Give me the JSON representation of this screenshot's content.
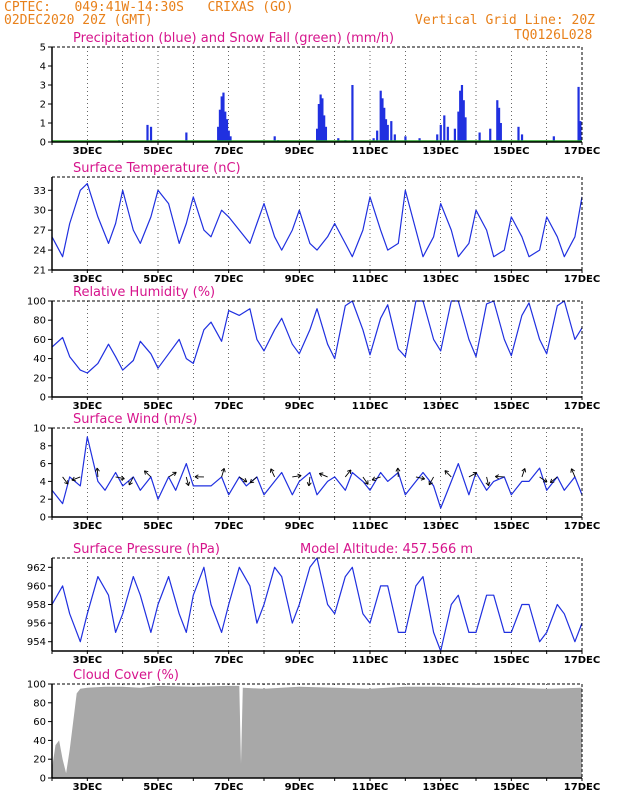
{
  "header": {
    "line1": "CPTEC:   049:41W-14:30S   CRIXAS (GO)",
    "line2": "02DEC2020 20Z (GMT)",
    "grid_note": "Vertical Grid Line: 20Z",
    "code": "TQ0126L028"
  },
  "colors": {
    "header": "#e8801a",
    "title": "#d6148c",
    "series_blue": "#2030e0",
    "snow_green": "#22a022",
    "cloud_gray": "#a8a8a8"
  },
  "date_labels": [
    "3DEC",
    "5DEC",
    "7DEC",
    "9DEC",
    "11DEC",
    "13DEC",
    "15DEC",
    "17DEC"
  ],
  "chart_data": [
    {
      "type": "bar",
      "title": "Precipitation (blue) and Snow Fall (green) (mm/h)",
      "ylim": [
        0,
        5
      ],
      "yticks": [
        0,
        1,
        2,
        3,
        4,
        5
      ],
      "series": [
        {
          "name": "Precipitation",
          "color": "#2030e0",
          "points": [
            [
              3.0,
              0.05
            ],
            [
              3.9,
              0.1
            ],
            [
              4.7,
              0.9
            ],
            [
              4.8,
              0.8
            ],
            [
              5.8,
              0.5
            ],
            [
              6.7,
              0.8
            ],
            [
              6.75,
              1.7
            ],
            [
              6.8,
              2.4
            ],
            [
              6.85,
              2.6
            ],
            [
              6.9,
              1.6
            ],
            [
              6.95,
              1.2
            ],
            [
              7.0,
              0.6
            ],
            [
              7.05,
              0.3
            ],
            [
              8.3,
              0.3
            ],
            [
              8.4,
              0.1
            ],
            [
              9.5,
              0.7
            ],
            [
              9.55,
              2.0
            ],
            [
              9.6,
              2.5
            ],
            [
              9.65,
              2.3
            ],
            [
              9.7,
              1.4
            ],
            [
              9.75,
              0.8
            ],
            [
              10.1,
              0.2
            ],
            [
              10.3,
              0.1
            ],
            [
              10.5,
              3.0
            ],
            [
              11.1,
              0.2
            ],
            [
              11.2,
              0.6
            ],
            [
              11.3,
              2.7
            ],
            [
              11.35,
              2.3
            ],
            [
              11.4,
              1.8
            ],
            [
              11.45,
              1.2
            ],
            [
              11.5,
              0.9
            ],
            [
              11.6,
              1.1
            ],
            [
              11.7,
              0.4
            ],
            [
              12.0,
              0.3
            ],
            [
              12.4,
              0.2
            ],
            [
              12.9,
              0.4
            ],
            [
              13.0,
              0.9
            ],
            [
              13.1,
              1.4
            ],
            [
              13.2,
              0.8
            ],
            [
              13.4,
              0.7
            ],
            [
              13.5,
              1.6
            ],
            [
              13.55,
              2.7
            ],
            [
              13.6,
              3.0
            ],
            [
              13.65,
              2.2
            ],
            [
              13.7,
              1.3
            ],
            [
              14.1,
              0.5
            ],
            [
              14.4,
              0.7
            ],
            [
              14.6,
              2.2
            ],
            [
              14.65,
              1.8
            ],
            [
              14.7,
              1.0
            ],
            [
              15.2,
              0.8
            ],
            [
              15.3,
              0.4
            ],
            [
              16.2,
              0.3
            ],
            [
              16.9,
              2.9
            ],
            [
              16.95,
              1.1
            ]
          ]
        },
        {
          "name": "Snow Fall",
          "color": "#22a022",
          "values": "0"
        }
      ]
    },
    {
      "type": "line",
      "title": "Surface Temperature (nC)",
      "ylim": [
        21,
        35
      ],
      "yticks": [
        21,
        24,
        27,
        30,
        33
      ],
      "x": [
        2.0,
        2.3,
        2.5,
        2.8,
        3.0,
        3.3,
        3.6,
        3.8,
        4.0,
        4.3,
        4.5,
        4.8,
        5.0,
        5.3,
        5.6,
        5.8,
        6.0,
        6.3,
        6.5,
        6.8,
        7.0,
        7.3,
        7.6,
        7.8,
        8.0,
        8.3,
        8.5,
        8.8,
        9.0,
        9.3,
        9.5,
        9.8,
        10.0,
        10.3,
        10.5,
        10.8,
        11.0,
        11.3,
        11.5,
        11.8,
        12.0,
        12.3,
        12.5,
        12.8,
        13.0,
        13.3,
        13.5,
        13.8,
        14.0,
        14.3,
        14.5,
        14.8,
        15.0,
        15.3,
        15.5,
        15.8,
        16.0,
        16.3,
        16.5,
        16.8,
        17.0
      ],
      "y": [
        26,
        23,
        28,
        33,
        34,
        29,
        25,
        28,
        33,
        27,
        25,
        29,
        33,
        31,
        25,
        28,
        32,
        27,
        26,
        30,
        29,
        27,
        25,
        28,
        31,
        26,
        24,
        27,
        30,
        25,
        24,
        26,
        28,
        25,
        23,
        27,
        32,
        27,
        24,
        25,
        33,
        27,
        23,
        26,
        31,
        27,
        23,
        25,
        30,
        27,
        23,
        24,
        29,
        26,
        23,
        24,
        29,
        26,
        23,
        26,
        32
      ]
    },
    {
      "type": "line",
      "title": "Relative Humidity (%)",
      "ylim": [
        0,
        100
      ],
      "yticks": [
        0,
        20,
        40,
        60,
        80,
        100
      ],
      "x": [
        2.0,
        2.3,
        2.5,
        2.8,
        3.0,
        3.3,
        3.6,
        3.8,
        4.0,
        4.3,
        4.5,
        4.8,
        5.0,
        5.3,
        5.6,
        5.8,
        6.0,
        6.3,
        6.5,
        6.8,
        7.0,
        7.3,
        7.6,
        7.8,
        8.0,
        8.3,
        8.5,
        8.8,
        9.0,
        9.3,
        9.5,
        9.8,
        10.0,
        10.3,
        10.5,
        10.8,
        11.0,
        11.3,
        11.5,
        11.8,
        12.0,
        12.3,
        12.5,
        12.8,
        13.0,
        13.3,
        13.5,
        13.8,
        14.0,
        14.3,
        14.5,
        14.8,
        15.0,
        15.3,
        15.5,
        15.8,
        16.0,
        16.3,
        16.5,
        16.8,
        17.0
      ],
      "y": [
        52,
        62,
        42,
        28,
        25,
        35,
        55,
        42,
        28,
        38,
        58,
        45,
        30,
        45,
        60,
        40,
        35,
        70,
        78,
        58,
        90,
        85,
        92,
        60,
        48,
        70,
        82,
        55,
        45,
        70,
        92,
        55,
        40,
        95,
        100,
        70,
        44,
        82,
        96,
        50,
        42,
        100,
        100,
        60,
        48,
        100,
        100,
        60,
        42,
        97,
        100,
        60,
        43,
        85,
        98,
        60,
        45,
        95,
        100,
        60,
        72
      ]
    },
    {
      "type": "line",
      "title": "Surface Wind (m/s)",
      "ylim": [
        0,
        10
      ],
      "yticks": [
        0,
        2,
        4,
        6,
        8,
        10
      ],
      "x": [
        2.0,
        2.3,
        2.5,
        2.8,
        3.0,
        3.3,
        3.5,
        3.8,
        4.0,
        4.3,
        4.5,
        4.8,
        5.0,
        5.3,
        5.5,
        5.8,
        6.0,
        6.3,
        6.5,
        6.8,
        7.0,
        7.3,
        7.5,
        7.8,
        8.0,
        8.3,
        8.5,
        8.8,
        9.0,
        9.3,
        9.5,
        9.8,
        10.0,
        10.3,
        10.5,
        10.8,
        11.0,
        11.3,
        11.5,
        11.8,
        12.0,
        12.3,
        12.5,
        12.8,
        13.0,
        13.3,
        13.5,
        13.8,
        14.0,
        14.3,
        14.5,
        14.8,
        15.0,
        15.3,
        15.5,
        15.8,
        16.0,
        16.3,
        16.5,
        16.8,
        17.0
      ],
      "y": [
        3,
        1.5,
        4.5,
        3.5,
        9,
        4,
        3,
        5,
        3.5,
        4.5,
        3,
        4.5,
        2,
        4.5,
        3,
        6,
        3.5,
        3.5,
        3.5,
        4.5,
        2.5,
        4.5,
        3.5,
        4.5,
        2.5,
        4,
        5,
        2.5,
        4,
        5,
        2.5,
        4,
        4.5,
        3,
        5,
        4,
        3,
        5,
        4,
        5,
        2.5,
        4,
        5,
        3.5,
        1,
        4,
        6,
        2.5,
        5,
        3,
        4,
        4.5,
        2.5,
        4,
        4,
        5.5,
        3,
        4.5,
        3,
        4.5,
        2.5
      ]
    },
    {
      "type": "line",
      "title": "Surface Pressure (hPa)",
      "annotation": "Model Altitude: 457.566  m",
      "ylim": [
        953,
        963
      ],
      "yticks": [
        954,
        956,
        958,
        960,
        962
      ],
      "x": [
        2.0,
        2.3,
        2.5,
        2.8,
        3.0,
        3.3,
        3.6,
        3.8,
        4.0,
        4.3,
        4.5,
        4.8,
        5.0,
        5.3,
        5.6,
        5.8,
        6.0,
        6.3,
        6.5,
        6.8,
        7.0,
        7.3,
        7.6,
        7.8,
        8.0,
        8.3,
        8.5,
        8.8,
        9.0,
        9.3,
        9.5,
        9.8,
        10.0,
        10.3,
        10.5,
        10.8,
        11.0,
        11.3,
        11.5,
        11.8,
        12.0,
        12.3,
        12.5,
        12.8,
        13.0,
        13.3,
        13.5,
        13.8,
        14.0,
        14.3,
        14.5,
        14.8,
        15.0,
        15.3,
        15.5,
        15.8,
        16.0,
        16.3,
        16.5,
        16.8,
        17.0
      ],
      "y": [
        958,
        960,
        957,
        954,
        957,
        961,
        959,
        955,
        957,
        961,
        959,
        955,
        958,
        961,
        957,
        955,
        959,
        962,
        958,
        955,
        958,
        962,
        960,
        956,
        958,
        962,
        961,
        956,
        958,
        962,
        963,
        958,
        957,
        961,
        962,
        957,
        956,
        960,
        960,
        955,
        955,
        960,
        961,
        955,
        953,
        958,
        959,
        955,
        955,
        959,
        959,
        955,
        955,
        958,
        958,
        954,
        955,
        958,
        957,
        954,
        956
      ]
    },
    {
      "type": "area",
      "title": "Cloud Cover (%)",
      "ylim": [
        0,
        100
      ],
      "yticks": [
        0,
        20,
        40,
        60,
        80,
        100
      ],
      "x": [
        2.0,
        2.1,
        2.2,
        2.3,
        2.4,
        2.5,
        2.6,
        2.7,
        2.8,
        3.0,
        3.5,
        4.0,
        4.5,
        5.0,
        6.0,
        7.0,
        7.3,
        7.35,
        7.4,
        8.0,
        9.0,
        10.0,
        11.0,
        12.0,
        13.0,
        14.0,
        15.0,
        16.0,
        17.0
      ],
      "y": [
        10,
        35,
        40,
        20,
        5,
        30,
        60,
        90,
        95,
        96,
        97,
        97,
        96,
        98,
        97,
        98,
        98,
        15,
        96,
        95,
        97,
        96,
        95,
        97,
        97,
        96,
        96,
        95,
        96
      ]
    }
  ]
}
